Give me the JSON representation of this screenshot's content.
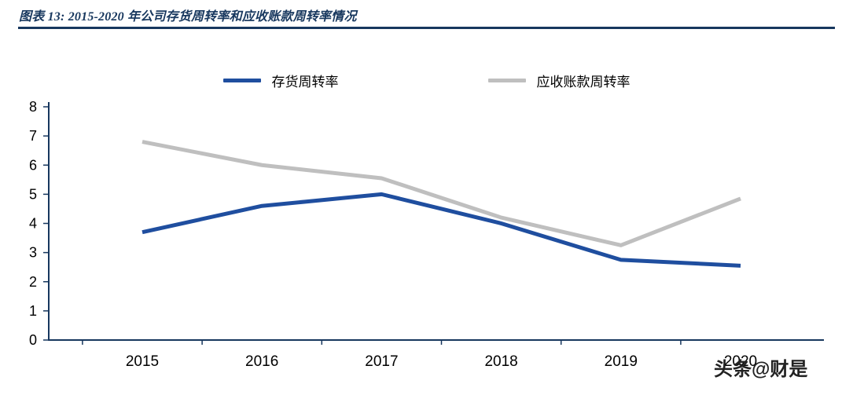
{
  "header": {
    "title": "图表 13:  2015-2020 年公司存货周转率和应收账款周转率情况"
  },
  "watermark": {
    "text": "头条@财是"
  },
  "colors": {
    "accent": "#17375E",
    "axis": "#17375E",
    "inventory_line": "#1F4E9F",
    "receivables_line": "#BFBFBF",
    "tick_text": "#000000"
  },
  "chart_data": {
    "type": "line",
    "title": "2015-2020 年公司存货周转率和应收账款周转率情况",
    "categories": [
      "2015",
      "2016",
      "2017",
      "2018",
      "2019",
      "2020"
    ],
    "series": [
      {
        "name": "存货周转率",
        "color": "#1F4E9F",
        "values": [
          3.7,
          4.6,
          5.0,
          4.0,
          2.75,
          2.55
        ]
      },
      {
        "name": "应收账款周转率",
        "color": "#BFBFBF",
        "values": [
          6.8,
          6.0,
          5.55,
          4.2,
          3.25,
          4.85
        ]
      }
    ],
    "xlabel": "",
    "ylabel": "",
    "ylim": [
      0,
      8
    ],
    "yticks": [
      0,
      1,
      2,
      3,
      4,
      5,
      6,
      7,
      8
    ],
    "grid": false,
    "legend_position": "top"
  }
}
